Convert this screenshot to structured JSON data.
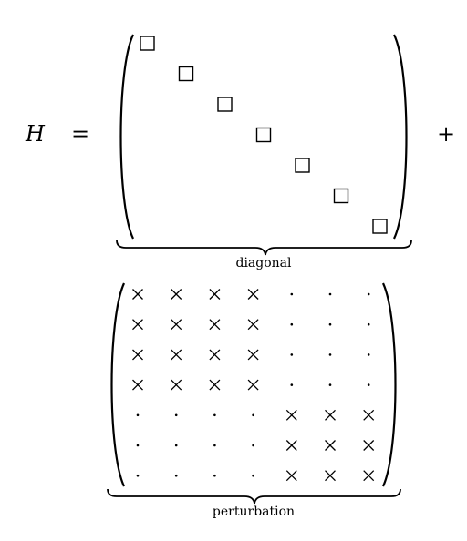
{
  "equation": {
    "lhs": "H",
    "equals": "=",
    "plus": "+"
  },
  "diagonal_matrix": {
    "label": "diagonal",
    "size": 7,
    "entry_symbol": "□"
  },
  "perturbation_matrix": {
    "label": "perturbation",
    "rows": [
      [
        "×",
        "×",
        "×",
        "×",
        "·",
        "·",
        "·"
      ],
      [
        "×",
        "×",
        "×",
        "×",
        "·",
        "·",
        "·"
      ],
      [
        "×",
        "×",
        "×",
        "×",
        "·",
        "·",
        "·"
      ],
      [
        "×",
        "×",
        "×",
        "×",
        "·",
        "·",
        "·"
      ],
      [
        "·",
        "·",
        "·",
        "·",
        "×",
        "×",
        "×"
      ],
      [
        "·",
        "·",
        "·",
        "·",
        "×",
        "×",
        "×"
      ],
      [
        "·",
        "·",
        "·",
        "·",
        "×",
        "×",
        "×"
      ]
    ]
  }
}
